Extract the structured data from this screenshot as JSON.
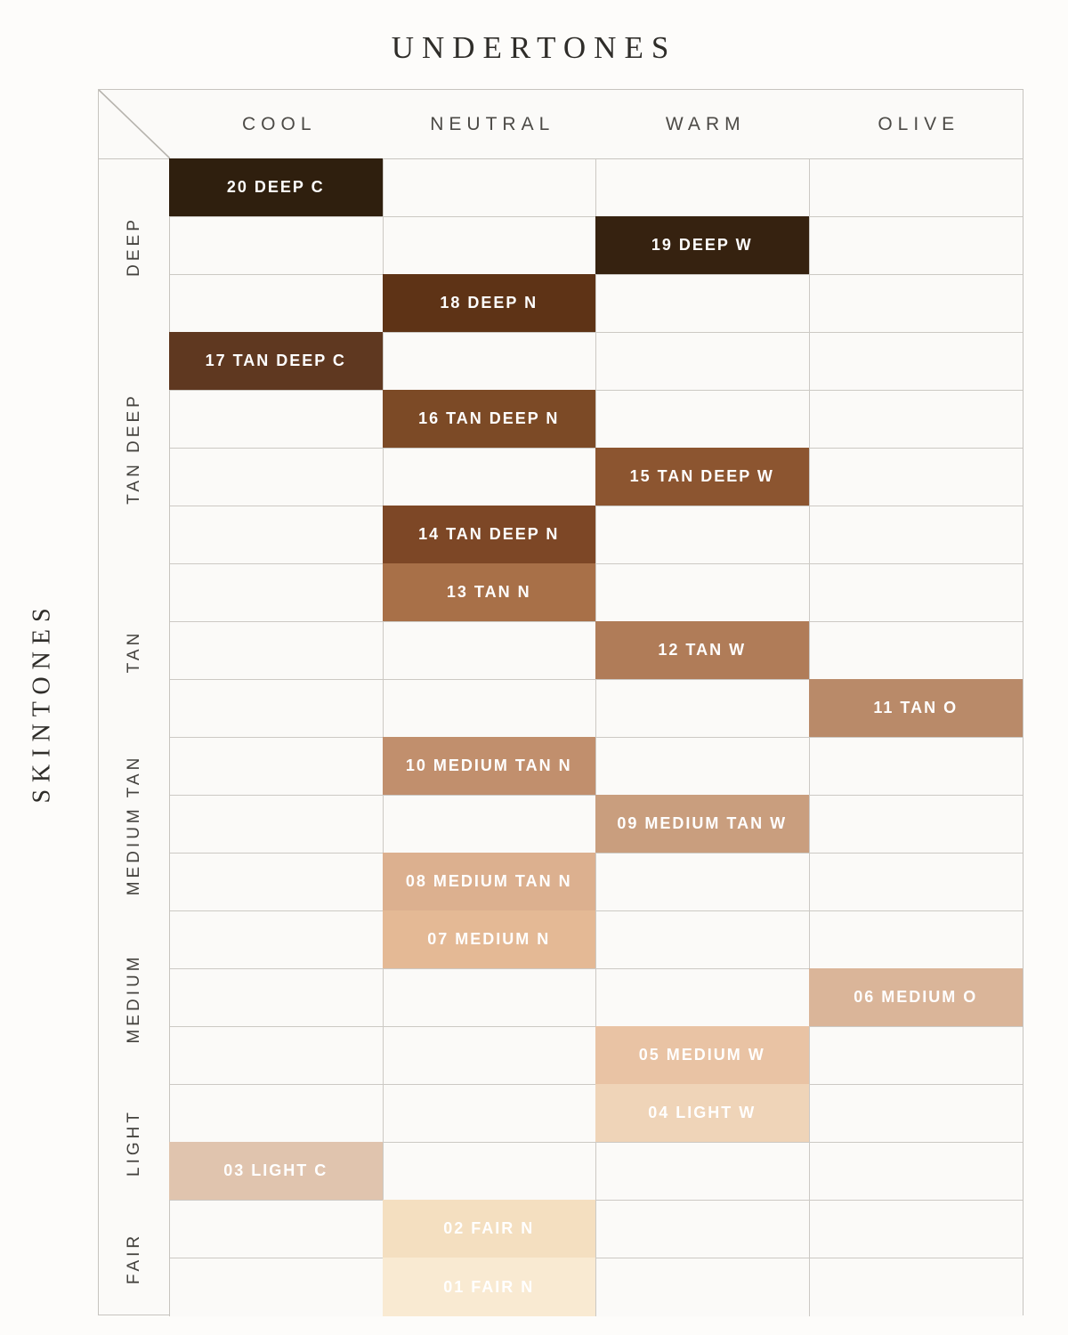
{
  "title": "UNDERTONES",
  "side_title": "SKINTONES",
  "columns": [
    "COOL",
    "NEUTRAL",
    "WARM",
    "OLIVE"
  ],
  "groups": [
    {
      "label": "DEEP",
      "row_count": 3
    },
    {
      "label": "TAN DEEP",
      "row_count": 4
    },
    {
      "label": "TAN",
      "row_count": 3
    },
    {
      "label": "MEDIUM TAN",
      "row_count": 3
    },
    {
      "label": "MEDIUM",
      "row_count": 3
    },
    {
      "label": "LIGHT",
      "row_count": 2
    },
    {
      "label": "FAIR",
      "row_count": 2
    }
  ],
  "shades": [
    {
      "label": "20 DEEP C",
      "group": "DEEP",
      "undertone": "COOL",
      "column": 0,
      "color": "#2f1f0e"
    },
    {
      "label": "19 DEEP W",
      "group": "DEEP",
      "undertone": "WARM",
      "column": 2,
      "color": "#362210"
    },
    {
      "label": "18 DEEP N",
      "group": "DEEP",
      "undertone": "NEUTRAL",
      "column": 1,
      "color": "#5e3316"
    },
    {
      "label": "17 TAN DEEP C",
      "group": "TAN DEEP",
      "undertone": "COOL",
      "column": 0,
      "color": "#5f3820"
    },
    {
      "label": "16 TAN DEEP N",
      "group": "TAN DEEP",
      "undertone": "NEUTRAL",
      "column": 1,
      "color": "#7c4a26"
    },
    {
      "label": "15 TAN DEEP W",
      "group": "TAN DEEP",
      "undertone": "WARM",
      "column": 2,
      "color": "#8c5530"
    },
    {
      "label": "14 TAN DEEP N",
      "group": "TAN DEEP",
      "undertone": "NEUTRAL",
      "column": 1,
      "color": "#7d4726"
    },
    {
      "label": "13 TAN N",
      "group": "TAN",
      "undertone": "NEUTRAL",
      "column": 1,
      "color": "#a87048"
    },
    {
      "label": "12 TAN W",
      "group": "TAN",
      "undertone": "WARM",
      "column": 2,
      "color": "#b07c58"
    },
    {
      "label": "11 TAN O",
      "group": "TAN",
      "undertone": "OLIVE",
      "column": 3,
      "color": "#b98a69"
    },
    {
      "label": "10 MEDIUM TAN N",
      "group": "MEDIUM TAN",
      "undertone": "NEUTRAL",
      "column": 1,
      "color": "#c18f6d"
    },
    {
      "label": "09 MEDIUM TAN W",
      "group": "MEDIUM TAN",
      "undertone": "WARM",
      "column": 2,
      "color": "#c99e7e"
    },
    {
      "label": "08 MEDIUM TAN N",
      "group": "MEDIUM TAN",
      "undertone": "NEUTRAL",
      "column": 1,
      "color": "#dcb08f"
    },
    {
      "label": "07 MEDIUM N",
      "group": "MEDIUM",
      "undertone": "NEUTRAL",
      "column": 1,
      "color": "#e4b995"
    },
    {
      "label": "06 MEDIUM O",
      "group": "MEDIUM",
      "undertone": "OLIVE",
      "column": 3,
      "color": "#dab599"
    },
    {
      "label": "05 MEDIUM W",
      "group": "MEDIUM",
      "undertone": "WARM",
      "column": 2,
      "color": "#e9c3a4"
    },
    {
      "label": "04 LIGHT W",
      "group": "LIGHT",
      "undertone": "WARM",
      "column": 2,
      "color": "#efd4b8"
    },
    {
      "label": "03 LIGHT C",
      "group": "LIGHT",
      "undertone": "COOL",
      "column": 0,
      "color": "#e0c4ae"
    },
    {
      "label": "02 FAIR N",
      "group": "FAIR",
      "undertone": "NEUTRAL",
      "column": 1,
      "color": "#f4dfc0"
    },
    {
      "label": "01 FAIR N",
      "group": "FAIR",
      "undertone": "NEUTRAL",
      "column": 1,
      "color": "#f9ead2"
    }
  ],
  "colors": {
    "page_bg": "#fdfcfa",
    "cell_bg": "#fbfaf8",
    "grid_line": "#ccc9c4",
    "swatch_text": "#ffffff",
    "heading_text": "#2f2d29"
  },
  "chart_data": {
    "type": "heatmap",
    "title": "UNDERTONES",
    "x_axis_label": "UNDERTONES",
    "y_axis_label": "SKINTONES",
    "x_categories": [
      "COOL",
      "NEUTRAL",
      "WARM",
      "OLIVE"
    ],
    "y_categories": [
      "DEEP",
      "TAN DEEP",
      "TAN",
      "MEDIUM TAN",
      "MEDIUM",
      "LIGHT",
      "FAIR"
    ],
    "legend_position": "none",
    "grid": true,
    "points": [
      {
        "shade": "20 DEEP C",
        "skintone": "DEEP",
        "undertone": "COOL",
        "color": "#2f1f0e"
      },
      {
        "shade": "19 DEEP W",
        "skintone": "DEEP",
        "undertone": "WARM",
        "color": "#362210"
      },
      {
        "shade": "18 DEEP N",
        "skintone": "DEEP",
        "undertone": "NEUTRAL",
        "color": "#5e3316"
      },
      {
        "shade": "17 TAN DEEP C",
        "skintone": "TAN DEEP",
        "undertone": "COOL",
        "color": "#5f3820"
      },
      {
        "shade": "16 TAN DEEP N",
        "skintone": "TAN DEEP",
        "undertone": "NEUTRAL",
        "color": "#7c4a26"
      },
      {
        "shade": "15 TAN DEEP W",
        "skintone": "TAN DEEP",
        "undertone": "WARM",
        "color": "#8c5530"
      },
      {
        "shade": "14 TAN DEEP N",
        "skintone": "TAN DEEP",
        "undertone": "NEUTRAL",
        "color": "#7d4726"
      },
      {
        "shade": "13 TAN N",
        "skintone": "TAN",
        "undertone": "NEUTRAL",
        "color": "#a87048"
      },
      {
        "shade": "12 TAN W",
        "skintone": "TAN",
        "undertone": "WARM",
        "color": "#b07c58"
      },
      {
        "shade": "11 TAN O",
        "skintone": "TAN",
        "undertone": "OLIVE",
        "color": "#b98a69"
      },
      {
        "shade": "10 MEDIUM TAN N",
        "skintone": "MEDIUM TAN",
        "undertone": "NEUTRAL",
        "color": "#c18f6d"
      },
      {
        "shade": "09 MEDIUM TAN W",
        "skintone": "MEDIUM TAN",
        "undertone": "WARM",
        "color": "#c99e7e"
      },
      {
        "shade": "08 MEDIUM TAN N",
        "skintone": "MEDIUM TAN",
        "undertone": "NEUTRAL",
        "color": "#dcb08f"
      },
      {
        "shade": "07 MEDIUM N",
        "skintone": "MEDIUM",
        "undertone": "NEUTRAL",
        "color": "#e4b995"
      },
      {
        "shade": "06 MEDIUM O",
        "skintone": "MEDIUM",
        "undertone": "OLIVE",
        "color": "#dab599"
      },
      {
        "shade": "05 MEDIUM W",
        "skintone": "MEDIUM",
        "undertone": "WARM",
        "color": "#e9c3a4"
      },
      {
        "shade": "04 LIGHT W",
        "skintone": "LIGHT",
        "undertone": "WARM",
        "color": "#efd4b8"
      },
      {
        "shade": "03 LIGHT C",
        "skintone": "LIGHT",
        "undertone": "COOL",
        "color": "#e0c4ae"
      },
      {
        "shade": "02 FAIR N",
        "skintone": "FAIR",
        "undertone": "NEUTRAL",
        "color": "#f4dfc0"
      },
      {
        "shade": "01 FAIR N",
        "skintone": "FAIR",
        "undertone": "NEUTRAL",
        "color": "#f9ead2"
      }
    ]
  }
}
